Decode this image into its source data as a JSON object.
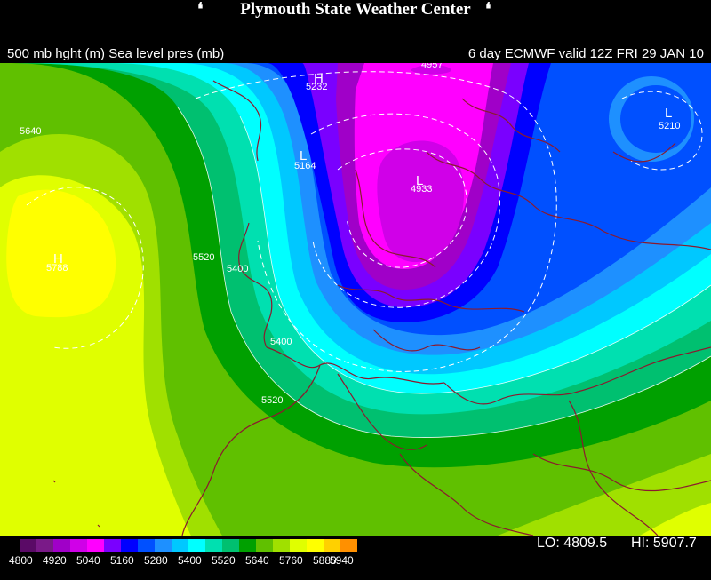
{
  "banner": {
    "title": "Plymouth State Weather Center",
    "left_flag": "❛",
    "right_flag": "❛"
  },
  "header": {
    "left_text": "500 mb hght (m) Sea level pres (mb)",
    "right_text": "6 day ECMWF valid 12Z FRI 29 JAN 10"
  },
  "map_labels": [
    {
      "id": "h-top",
      "text": "H",
      "kind": "marker"
    },
    {
      "id": "v5232",
      "text": "5232",
      "kind": "value"
    },
    {
      "id": "v4957",
      "text": "4957",
      "kind": "value"
    },
    {
      "id": "l-right",
      "text": "L",
      "kind": "marker"
    },
    {
      "id": "v5210",
      "text": "5210",
      "kind": "value"
    },
    {
      "id": "v5640a",
      "text": "5640",
      "kind": "value"
    },
    {
      "id": "l-mid",
      "text": "L",
      "kind": "marker"
    },
    {
      "id": "v5164",
      "text": "5164",
      "kind": "value"
    },
    {
      "id": "l-center",
      "text": "L",
      "kind": "marker"
    },
    {
      "id": "v4933",
      "text": "4933",
      "kind": "value"
    },
    {
      "id": "h-left",
      "text": "H",
      "kind": "marker"
    },
    {
      "id": "v5788",
      "text": "5788",
      "kind": "value"
    },
    {
      "id": "v5520a",
      "text": "5520",
      "kind": "value"
    },
    {
      "id": "v5400a",
      "text": "5400",
      "kind": "value"
    },
    {
      "id": "v5400b",
      "text": "5400",
      "kind": "value"
    },
    {
      "id": "v5520b",
      "text": "5520",
      "kind": "value"
    }
  ],
  "colorbar": {
    "labels": [
      "4800",
      "4920",
      "5040",
      "5160",
      "5280",
      "5400",
      "5520",
      "5640",
      "5760",
      "5880",
      "5940"
    ],
    "colors": [
      "#5a0a66",
      "#7a1a88",
      "#a000c8",
      "#d000e8",
      "#ff00ff",
      "#7a00ff",
      "#0000ff",
      "#0050ff",
      "#1e90ff",
      "#00c8ff",
      "#00ffff",
      "#00e0b0",
      "#00c070",
      "#00a000",
      "#60c000",
      "#a0e000",
      "#e0ff00",
      "#ffff00",
      "#ffd000",
      "#ff9000"
    ]
  },
  "stats": {
    "lo": "LO: 4809.5",
    "hi": "HI: 5907.7"
  }
}
